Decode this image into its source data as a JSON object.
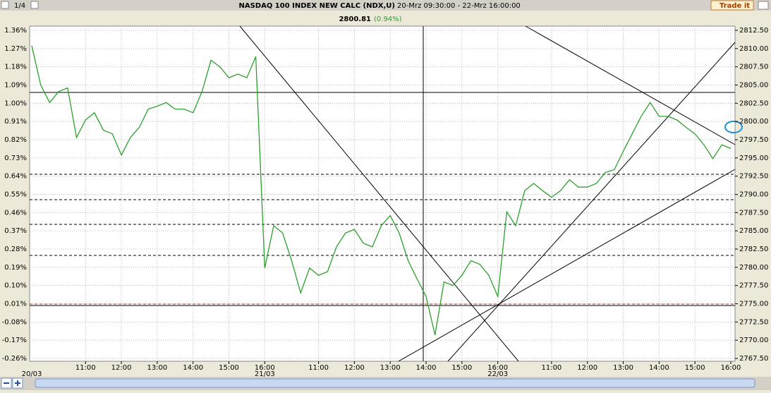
{
  "toolbar": {
    "page": "1/4",
    "trade_button": "Trade it"
  },
  "chart_data": {
    "type": "line",
    "title": "NASDAQ 100 INDEX NEW CALC (NDX,U)",
    "subtitle": "20-Mrz 09:30:00 - 22-Mrz 16:00:00",
    "last_price": "2800.81",
    "last_change": "(0.94%)",
    "x": [
      0,
      0.25,
      0.5,
      0.75,
      1,
      1.25,
      1.5,
      1.75,
      2,
      2.25,
      2.5,
      2.75,
      3,
      3.25,
      3.5,
      3.75,
      4,
      4.25,
      4.5,
      4.75,
      5,
      5.25,
      5.5,
      5.75,
      6,
      6.25,
      6.5,
      6.75,
      7,
      7.25,
      7.5,
      7.75,
      8,
      8.25,
      8.5,
      8.75,
      9,
      9.25,
      9.5,
      9.75,
      10,
      10.25,
      10.5,
      10.75,
      11,
      11.25,
      11.5,
      11.75,
      12,
      12.25,
      12.5,
      12.75,
      13,
      13.25,
      13.5,
      13.75,
      14,
      14.25,
      14.5,
      14.75,
      15,
      15.25,
      15.5,
      15.75,
      16,
      16.25,
      16.5,
      16.75,
      17,
      17.25,
      17.5,
      17.75,
      18,
      18.25,
      18.5,
      18.75,
      19,
      19.25,
      19.5
    ],
    "series": [
      {
        "name": "NDX",
        "color": "#2ca02c",
        "axis": "y2",
        "values": [
          2810.4,
          2805.0,
          2802.6,
          2804.1,
          2804.6,
          2797.8,
          2800.2,
          2801.2,
          2798.8,
          2798.3,
          2795.4,
          2797.8,
          2799.2,
          2801.7,
          2802.1,
          2802.6,
          2801.7,
          2801.7,
          2801.2,
          2804.1,
          2808.4,
          2807.5,
          2806.0,
          2806.5,
          2806.0,
          2808.9,
          2779.9,
          2785.7,
          2784.7,
          2780.9,
          2776.5,
          2779.9,
          2778.9,
          2779.4,
          2782.8,
          2784.7,
          2785.2,
          2783.3,
          2782.8,
          2785.7,
          2787.1,
          2784.7,
          2780.9,
          2778.4,
          2776.0,
          2770.7,
          2778.0,
          2777.5,
          2778.9,
          2780.9,
          2780.4,
          2778.9,
          2776.0,
          2787.6,
          2785.7,
          2790.5,
          2791.5,
          2790.5,
          2789.6,
          2790.5,
          2792.0,
          2791.0,
          2791.0,
          2791.5,
          2793.0,
          2793.4,
          2795.9,
          2798.3,
          2800.7,
          2802.6,
          2800.7,
          2800.7,
          2800.2,
          2799.2,
          2798.3,
          2796.8,
          2794.9,
          2796.8,
          2796.3
        ]
      }
    ],
    "xlim": [
      0,
      19.5
    ],
    "xticks": [
      {
        "value": 1.5,
        "label": "11:00"
      },
      {
        "value": 2.5,
        "label": "12:00"
      },
      {
        "value": 3.5,
        "label": "13:00"
      },
      {
        "value": 4.5,
        "label": "14:00"
      },
      {
        "value": 5.5,
        "label": "15:00"
      },
      {
        "value": 6.5,
        "label": "16:00"
      },
      {
        "value": 8,
        "label": "11:00"
      },
      {
        "value": 9,
        "label": "12:00"
      },
      {
        "value": 10,
        "label": "13:00"
      },
      {
        "value": 11,
        "label": "14:00"
      },
      {
        "value": 12,
        "label": "15:00"
      },
      {
        "value": 13,
        "label": "16:00"
      },
      {
        "value": 14.5,
        "label": "11:00"
      },
      {
        "value": 15.5,
        "label": "12:00"
      },
      {
        "value": 16.5,
        "label": "13:00"
      },
      {
        "value": 17.5,
        "label": "14:00"
      },
      {
        "value": 18.5,
        "label": "15:00"
      },
      {
        "value": 19.5,
        "label": "16:00"
      }
    ],
    "date_ticks": [
      {
        "value": 0,
        "label": "20/03"
      },
      {
        "value": 6.5,
        "label": "21/03"
      },
      {
        "value": 13,
        "label": "22/03"
      }
    ],
    "ylim": [
      -0.26,
      1.36
    ],
    "yticks": [
      {
        "value": 1.36,
        "label": "1.36%"
      },
      {
        "value": 1.27,
        "label": "1.27%"
      },
      {
        "value": 1.18,
        "label": "1.18%"
      },
      {
        "value": 1.09,
        "label": "1.09%"
      },
      {
        "value": 1.0,
        "label": "1.00%"
      },
      {
        "value": 0.91,
        "label": "0.91%"
      },
      {
        "value": 0.82,
        "label": "0.82%"
      },
      {
        "value": 0.73,
        "label": "0.73%"
      },
      {
        "value": 0.64,
        "label": "0.64%"
      },
      {
        "value": 0.55,
        "label": "0.55%"
      },
      {
        "value": 0.46,
        "label": "0.46%"
      },
      {
        "value": 0.37,
        "label": "0.37%"
      },
      {
        "value": 0.28,
        "label": "0.28%"
      },
      {
        "value": 0.19,
        "label": "0.19%"
      },
      {
        "value": 0.1,
        "label": "0.10%"
      },
      {
        "value": 0.01,
        "label": "0.01%"
      },
      {
        "value": -0.08,
        "label": "-0.08%"
      },
      {
        "value": -0.17,
        "label": "-0.17%"
      },
      {
        "value": -0.26,
        "label": "-0.26%"
      }
    ],
    "y2lim": [
      2767.5,
      2812.5
    ],
    "y2ticks": [
      {
        "value": 2812.5,
        "label": "2812.50"
      },
      {
        "value": 2810,
        "label": "2810.00"
      },
      {
        "value": 2807.5,
        "label": "2807.50"
      },
      {
        "value": 2805,
        "label": "2805.00"
      },
      {
        "value": 2802.5,
        "label": "2802.50"
      },
      {
        "value": 2800,
        "label": "2800.00"
      },
      {
        "value": 2797.5,
        "label": "2797.50"
      },
      {
        "value": 2795,
        "label": "2795.00"
      },
      {
        "value": 2792.5,
        "label": "2792.50"
      },
      {
        "value": 2790,
        "label": "2790.00"
      },
      {
        "value": 2787.5,
        "label": "2787.50"
      },
      {
        "value": 2785,
        "label": "2785.00"
      },
      {
        "value": 2782.5,
        "label": "2782.50"
      },
      {
        "value": 2780,
        "label": "2780.00"
      },
      {
        "value": 2777.5,
        "label": "2777.50"
      },
      {
        "value": 2775,
        "label": "2775.00"
      },
      {
        "value": 2772.5,
        "label": "2772.50"
      },
      {
        "value": 2770,
        "label": "2770.00"
      },
      {
        "value": 2767.5,
        "label": "2767.50"
      }
    ],
    "grid": true
  }
}
